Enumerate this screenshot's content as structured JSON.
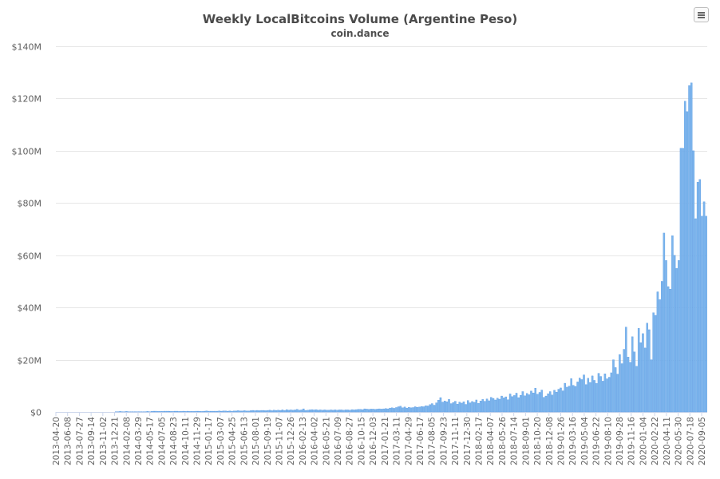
{
  "chart_data": {
    "type": "bar",
    "title": "Weekly LocalBitcoins Volume (Argentine Peso)",
    "subtitle": "coin.dance",
    "ylim": [
      0,
      140000000
    ],
    "y_ticks": [
      "$0",
      "$20M",
      "$40M",
      "$60M",
      "$80M",
      "$100M",
      "$120M",
      "$140M"
    ],
    "x_tick_labels": [
      "2013-04-20",
      "2013-06-08",
      "2013-07-27",
      "2013-09-14",
      "2013-11-02",
      "2013-12-21",
      "2014-02-08",
      "2014-03-29",
      "2014-05-17",
      "2014-07-05",
      "2014-08-23",
      "2014-10-11",
      "2014-11-29",
      "2015-01-17",
      "2015-03-07",
      "2015-04-25",
      "2015-06-13",
      "2015-08-01",
      "2015-09-19",
      "2015-11-07",
      "2015-12-26",
      "2016-02-13",
      "2016-04-02",
      "2016-05-21",
      "2016-07-09",
      "2016-08-27",
      "2016-10-15",
      "2016-12-03",
      "2017-01-21",
      "2017-03-11",
      "2017-04-29",
      "2017-06-17",
      "2017-08-05",
      "2017-09-23",
      "2017-11-11",
      "2017-12-30",
      "2018-02-17",
      "2018-04-07",
      "2018-05-26",
      "2018-07-14",
      "2018-09-01",
      "2018-10-20",
      "2018-12-08",
      "2019-01-26",
      "2019-03-16",
      "2019-05-04",
      "2019-06-22",
      "2019-08-10",
      "2019-09-28",
      "2019-11-16",
      "2020-01-04",
      "2020-02-22",
      "2020-04-11",
      "2020-05-30",
      "2020-07-18",
      "2020-09-05"
    ],
    "bar_color": "#7cb5ec",
    "bar_edge_color": "#4a90e2",
    "grid": true,
    "legend": "none",
    "values_millions": [
      0,
      0,
      0,
      0,
      0,
      0,
      0,
      0,
      0,
      0,
      0,
      0,
      0,
      0,
      0,
      0,
      0,
      0,
      0,
      0,
      0,
      0,
      0,
      0,
      0,
      0,
      0,
      0,
      0.1,
      0.1,
      0.2,
      0.1,
      0.1,
      0.2,
      0.1,
      0.1,
      0.1,
      0.1,
      0.1,
      0.1,
      0.1,
      0.1,
      0.1,
      0.2,
      0.1,
      0.2,
      0.3,
      0.3,
      0.2,
      0.2,
      0.2,
      0.3,
      0.3,
      0.3,
      0.2,
      0.2,
      0.3,
      0.3,
      0.2,
      0.2,
      0.3,
      0.2,
      0.3,
      0.2,
      0.2,
      0.2,
      0.3,
      0.3,
      0.2,
      0.2,
      0.3,
      0.4,
      0.3,
      0.3,
      0.3,
      0.3,
      0.3,
      0.4,
      0.3,
      0.4,
      0.4,
      0.3,
      0.4,
      0.3,
      0.4,
      0.4,
      0.5,
      0.4,
      0.4,
      0.5,
      0.4,
      0.4,
      0.5,
      0.6,
      0.5,
      0.6,
      0.5,
      0.6,
      0.6,
      0.5,
      0.6,
      0.7,
      0.5,
      0.7,
      0.6,
      0.7,
      0.6,
      0.8,
      0.6,
      0.9,
      0.7,
      0.8,
      0.7,
      0.8,
      1.0,
      0.7,
      0.8,
      1.2,
      0.6,
      0.7,
      0.8,
      0.9,
      0.8,
      0.9,
      0.7,
      0.8,
      0.7,
      0.8,
      0.7,
      0.7,
      0.8,
      0.7,
      0.8,
      0.7,
      0.8,
      0.8,
      0.7,
      0.8,
      0.8,
      0.7,
      0.9,
      0.8,
      0.9,
      1.0,
      1.0,
      0.9,
      1.2,
      1.1,
      1.0,
      1.1,
      1.1,
      1.0,
      1.1,
      1.2,
      1.1,
      1.2,
      1.3,
      1.2,
      1.5,
      1.6,
      1.4,
      1.7,
      2.0,
      2.2,
      1.6,
      1.9,
      1.5,
      1.8,
      1.6,
      1.7,
      2.0,
      1.8,
      1.9,
      2.1,
      2.0,
      2.4,
      2.3,
      2.8,
      3.2,
      2.6,
      3.5,
      4.5,
      5.5,
      3.8,
      4.2,
      3.9,
      4.8,
      3.2,
      3.6,
      4.1,
      3.0,
      3.8,
      3.4,
      3.9,
      2.9,
      4.4,
      3.5,
      4.0,
      3.7,
      4.6,
      3.3,
      4.2,
      4.8,
      4.1,
      5.0,
      4.3,
      5.6,
      5.2,
      4.6,
      5.3,
      4.9,
      6.1,
      5.4,
      5.8,
      4.7,
      6.9,
      5.9,
      6.3,
      7.2,
      5.5,
      6.4,
      7.8,
      6.2,
      7.1,
      6.6,
      8.0,
      7.3,
      9.1,
      6.8,
      7.5,
      8.4,
      5.6,
      6.1,
      7.0,
      7.8,
      6.5,
      8.3,
      7.6,
      8.7,
      9.2,
      8.1,
      11.0,
      9.5,
      9.9,
      12.8,
      10.2,
      9.8,
      11.5,
      13.0,
      12.4,
      14.2,
      10.5,
      12.9,
      11.3,
      13.8,
      12.1,
      10.9,
      14.8,
      13.6,
      11.8,
      14.6,
      12.7,
      13.3,
      15.0,
      20.0,
      17.0,
      14.5,
      22.0,
      18.5,
      24.0,
      32.5,
      21.0,
      19.0,
      28.8,
      23.0,
      17.5,
      32.0,
      26.5,
      30.0,
      24.5,
      34.0,
      31.5,
      20.0,
      38.0,
      37.0,
      46.0,
      43.0,
      50.0,
      68.5,
      58.0,
      48.0,
      47.0,
      67.5,
      60.0,
      55.0,
      58.0,
      101.0,
      101.0,
      119.0,
      115.0,
      125.0,
      126.0,
      100.0,
      74.0,
      88.0,
      89.0,
      75.0,
      80.5,
      75.0
    ]
  },
  "ui": {
    "menu_icon": "hamburger-menu-icon"
  }
}
